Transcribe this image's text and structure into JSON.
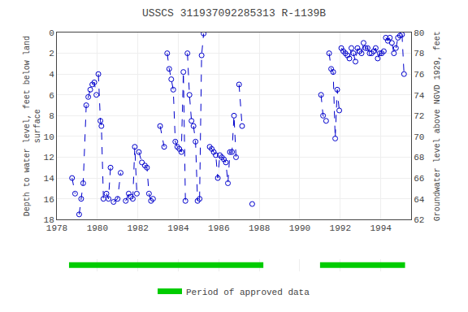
{
  "chart_data": {
    "type": "line",
    "title": "USSCS 311937092285313 R-1139B",
    "ylabel": "Depth to water level, feet below land\nsurface",
    "y2label": "Groundwater level above NGVD 1929, feet",
    "xlim": [
      1978,
      1995.5
    ],
    "xticks": [
      1978,
      1980,
      1982,
      1984,
      1986,
      1988,
      1990,
      1992,
      1994
    ],
    "ylim": [
      18,
      0
    ],
    "yticks": [
      0,
      2,
      4,
      6,
      8,
      10,
      12,
      14,
      16,
      18
    ],
    "y2lim": [
      62,
      80
    ],
    "y2ticks": [
      62,
      64,
      66,
      68,
      70,
      72,
      74,
      76,
      78,
      80
    ],
    "grid": true,
    "color": "#0000CC",
    "marker": "open circle",
    "line_style": "dashed",
    "series": [
      {
        "x": [
          1978.75,
          1978.9
        ],
        "values": [
          14.0,
          15.5
        ]
      },
      {
        "x": [
          1979.1,
          1979.2,
          1979.3,
          1979.45,
          1979.55,
          1979.65,
          1979.75,
          1979.85,
          1979.95
        ],
        "values": [
          17.5,
          16.0,
          14.5,
          7.0,
          6.2,
          5.5,
          5.0,
          4.8,
          6.0
        ]
      },
      {
        "x": [
          1980.05,
          1980.15,
          1980.2,
          1980.3
        ],
        "values": [
          4.0,
          8.5,
          9.0,
          16.0
        ]
      },
      {
        "x": [
          1980.45,
          1980.55,
          1980.65
        ],
        "values": [
          15.5,
          16.0,
          13.0
        ]
      },
      {
        "x": [
          1980.8,
          1981.0,
          1981.15
        ],
        "values": [
          16.3,
          16.0,
          13.5
        ]
      },
      {
        "x": [
          1981.4,
          1981.55,
          1981.65,
          1981.75,
          1981.85,
          1981.95
        ],
        "values": [
          16.2,
          15.5,
          15.8,
          16.0,
          11.0,
          15.5
        ]
      },
      {
        "x": [
          1982.05,
          1982.2,
          1982.35,
          1982.45,
          1982.55,
          1982.65,
          1982.75
        ],
        "values": [
          11.5,
          12.5,
          12.8,
          13.0,
          15.5,
          16.2,
          16.0
        ]
      },
      {
        "x": [
          1983.1,
          1983.3
        ],
        "values": [
          9.0,
          11.0
        ]
      },
      {
        "x": [
          1983.45,
          1983.55,
          1983.65,
          1983.75,
          1983.85,
          1983.95
        ],
        "values": [
          2.0,
          3.5,
          4.5,
          5.5,
          10.5,
          11.0
        ]
      },
      {
        "x": [
          1984.05,
          1984.15,
          1984.25,
          1984.35
        ],
        "values": [
          11.2,
          11.5,
          3.8,
          16.2
        ]
      },
      {
        "x": [
          1984.45,
          1984.55,
          1984.65,
          1984.75,
          1984.85,
          1984.95
        ],
        "values": [
          2.0,
          6.0,
          8.5,
          9.0,
          10.5,
          16.2
        ]
      },
      {
        "x": [
          1985.05,
          1985.15,
          1985.25
        ],
        "values": [
          16.0,
          2.2,
          0.1
        ]
      },
      {
        "x": [
          1985.55,
          1985.65,
          1985.75,
          1985.85,
          1985.95,
          1986.05,
          1986.15,
          1986.25,
          1986.35,
          1986.45,
          1986.55,
          1986.65,
          1986.75,
          1986.85
        ],
        "values": [
          11.0,
          11.2,
          11.5,
          11.8,
          14.0,
          11.8,
          12.0,
          12.2,
          12.5,
          14.5,
          11.5,
          11.5,
          8.0,
          12.0
        ]
      },
      {
        "x": [
          1987.0,
          1987.15
        ],
        "values": [
          5.0,
          9.0
        ]
      },
      {
        "x": [
          1987.65
        ],
        "values": [
          16.5
        ]
      },
      {
        "x": [
          1991.05,
          1991.15,
          1991.3
        ],
        "values": [
          6.0,
          8.0,
          8.5
        ]
      },
      {
        "x": [
          1991.45,
          1991.55,
          1991.65,
          1991.75,
          1991.85,
          1991.95
        ],
        "values": [
          2.0,
          3.5,
          3.8,
          10.2,
          5.5,
          7.5
        ]
      },
      {
        "x": [
          1992.05,
          1992.15,
          1992.25,
          1992.35,
          1992.45,
          1992.55,
          1992.65,
          1992.75,
          1992.85,
          1992.95,
          1993.05,
          1993.15,
          1993.25,
          1993.35,
          1993.45,
          1993.55,
          1993.65,
          1993.75,
          1993.85,
          1993.95,
          1994.05,
          1994.15
        ],
        "values": [
          1.5,
          1.8,
          2.0,
          2.2,
          2.5,
          1.5,
          2.0,
          2.8,
          1.5,
          1.8,
          2.0,
          1.0,
          1.5,
          1.5,
          2.0,
          2.0,
          1.8,
          1.5,
          2.5,
          2.0,
          2.0,
          1.8
        ]
      },
      {
        "x": [
          1994.25,
          1994.35,
          1994.45,
          1994.55,
          1994.65,
          1994.75,
          1994.85,
          1994.95
        ],
        "values": [
          0.5,
          0.8,
          0.5,
          1.0,
          2.0,
          1.5,
          0.5,
          0.3
        ]
      },
      {
        "x": [
          1995.05,
          1995.15
        ],
        "values": [
          0.2,
          4.0
        ]
      }
    ],
    "approved_periods": {
      "name": "Period of approved data",
      "color": "#00CC00",
      "periods": [
        [
          1978.6,
          1988.2
        ],
        [
          1991.0,
          1995.2
        ]
      ]
    }
  }
}
